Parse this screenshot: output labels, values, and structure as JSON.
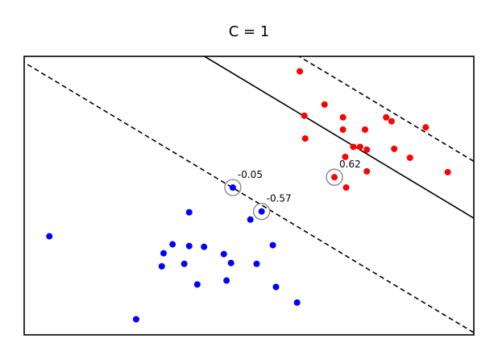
{
  "chart_data": {
    "type": "scatter",
    "title": "C = 1",
    "xlabel": "",
    "ylabel": "",
    "xlim": [
      0,
      10
    ],
    "ylim": [
      0,
      10
    ],
    "grid": false,
    "axes_ticks": false,
    "series": [
      {
        "color": "#ff0000",
        "points": [
          [
            6.13,
            9.46
          ],
          [
            6.23,
            7.87
          ],
          [
            6.68,
            8.27
          ],
          [
            7.09,
            7.81
          ],
          [
            8.05,
            7.81
          ],
          [
            8.17,
            7.67
          ],
          [
            7.09,
            7.37
          ],
          [
            7.58,
            7.37
          ],
          [
            8.93,
            7.45
          ],
          [
            6.25,
            7.05
          ],
          [
            7.32,
            6.75
          ],
          [
            7.47,
            6.75
          ],
          [
            7.62,
            6.65
          ],
          [
            8.23,
            6.68
          ],
          [
            7.14,
            6.39
          ],
          [
            8.58,
            6.36
          ],
          [
            7.62,
            5.87
          ],
          [
            9.42,
            5.84
          ],
          [
            6.9,
            5.66
          ],
          [
            7.16,
            5.29
          ]
        ]
      },
      {
        "color": "#0000ff",
        "points": [
          [
            4.64,
            5.29
          ],
          [
            5.28,
            4.43
          ],
          [
            3.67,
            4.4
          ],
          [
            5.03,
            4.14
          ],
          [
            0.56,
            3.54
          ],
          [
            3.3,
            3.25
          ],
          [
            3.67,
            3.19
          ],
          [
            4.0,
            3.16
          ],
          [
            5.53,
            3.22
          ],
          [
            3.1,
            2.93
          ],
          [
            4.44,
            2.9
          ],
          [
            3.56,
            2.55
          ],
          [
            4.6,
            2.58
          ],
          [
            5.17,
            2.55
          ],
          [
            3.06,
            2.46
          ],
          [
            4.5,
            1.95
          ],
          [
            3.85,
            1.81
          ],
          [
            5.6,
            1.72
          ],
          [
            6.07,
            1.16
          ],
          [
            2.49,
            0.56
          ]
        ]
      }
    ],
    "decision_boundary": {
      "slope": -0.97,
      "intercept": 13.89
    },
    "margin_lines": [
      {
        "slope": -0.97,
        "intercept": 15.93
      },
      {
        "slope": -0.97,
        "intercept": 9.78
      }
    ],
    "support_vectors": [
      {
        "point": [
          4.64,
          5.29
        ],
        "label": "-0.05"
      },
      {
        "point": [
          5.28,
          4.43
        ],
        "label": "-0.57"
      },
      {
        "point": [
          6.9,
          5.66
        ],
        "label": "0.62"
      }
    ]
  }
}
